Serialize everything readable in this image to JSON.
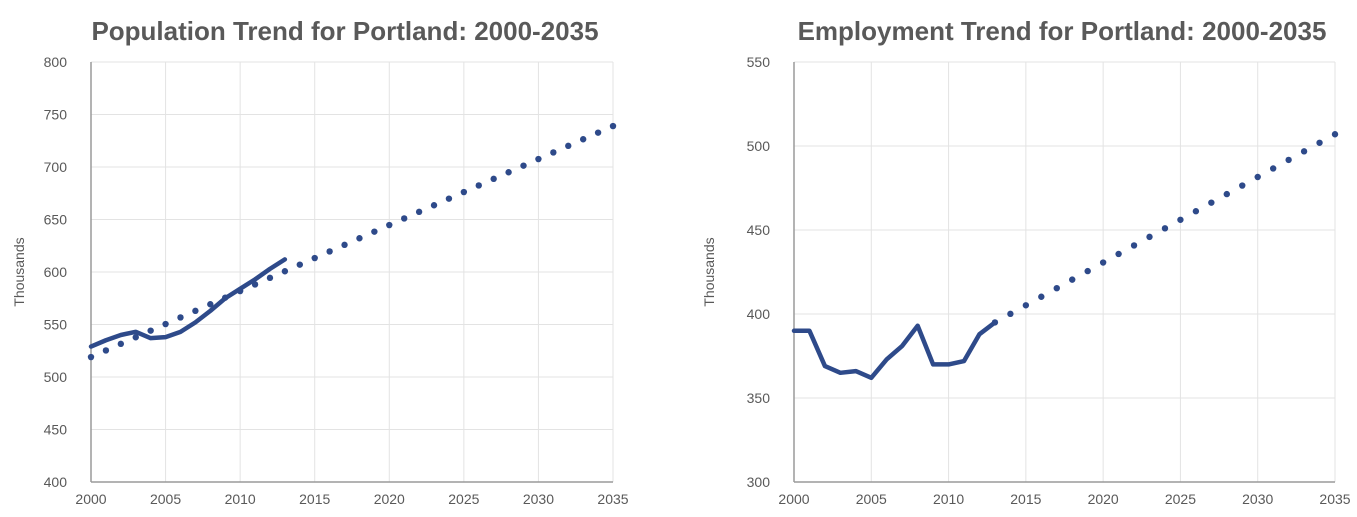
{
  "chart_data": [
    {
      "type": "line",
      "title": "Population Trend for Portland: 2000-2035",
      "xlabel": "",
      "ylabel": "Thousands",
      "xlim": [
        2000,
        2035
      ],
      "ylim": [
        400,
        800
      ],
      "xticks": [
        "2000",
        "2005",
        "2010",
        "2015",
        "2020",
        "2025",
        "2030",
        "2035"
      ],
      "yticks": [
        "400",
        "450",
        "500",
        "550",
        "600",
        "650",
        "700",
        "750",
        "800"
      ],
      "grid": true,
      "series": [
        {
          "style": "solid",
          "color": "#2e4a8a",
          "x": [
            2000,
            2001,
            2002,
            2003,
            2004,
            2005,
            2006,
            2007,
            2008,
            2009,
            2010,
            2011,
            2012,
            2013
          ],
          "y": [
            529,
            535,
            540,
            543,
            537,
            538,
            543,
            552,
            563,
            575,
            584,
            593,
            603,
            612
          ]
        },
        {
          "style": "dotted",
          "color": "#2e4a8a",
          "x": [
            2000,
            2035
          ],
          "y": [
            519,
            739
          ]
        }
      ]
    },
    {
      "type": "line",
      "title": "Employment Trend for Portland: 2000-2035",
      "xlabel": "",
      "ylabel": "Thousands",
      "xlim": [
        2000,
        2035
      ],
      "ylim": [
        300,
        550
      ],
      "xticks": [
        "2000",
        "2005",
        "2010",
        "2015",
        "2020",
        "2025",
        "2030",
        "2035"
      ],
      "yticks": [
        "300",
        "350",
        "400",
        "450",
        "500",
        "550"
      ],
      "grid": true,
      "series": [
        {
          "style": "solid",
          "color": "#2e4a8a",
          "x": [
            2000,
            2001,
            2002,
            2003,
            2004,
            2005,
            2006,
            2007,
            2008,
            2009,
            2010,
            2011,
            2012,
            2013
          ],
          "y": [
            390,
            390,
            369,
            365,
            366,
            362,
            373,
            381,
            393,
            370,
            370,
            372,
            388,
            395
          ]
        },
        {
          "style": "dotted",
          "color": "#2e4a8a",
          "x": [
            2013,
            2035
          ],
          "y": [
            395,
            507
          ]
        }
      ]
    }
  ]
}
